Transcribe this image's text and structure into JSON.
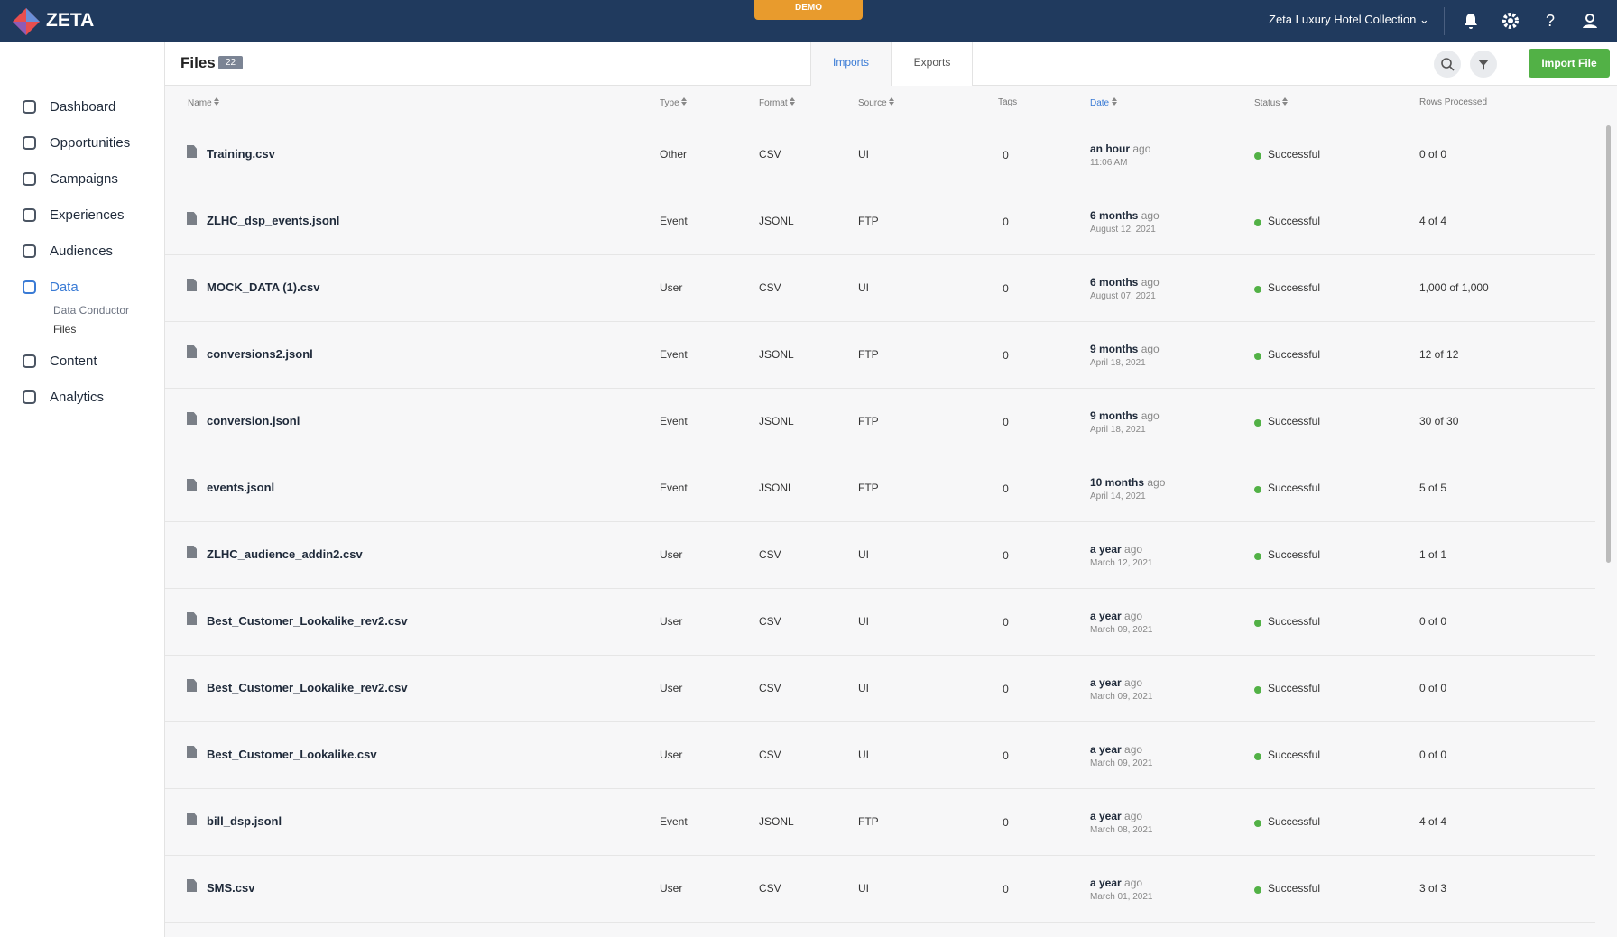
{
  "header": {
    "logo": "ZETA",
    "badge": "DEMO",
    "account": "Zeta Luxury Hotel Collection"
  },
  "sidebar": {
    "items": [
      "Dashboard",
      "Opportunities",
      "Campaigns",
      "Experiences",
      "Audiences",
      "Data",
      "Content",
      "Analytics"
    ],
    "subitems": [
      "Data Conductor",
      "Files"
    ]
  },
  "page": {
    "title": "Files",
    "count": 22,
    "tabs": [
      "Imports",
      "Exports"
    ],
    "button": "Import File"
  },
  "table": {
    "columns": [
      "Name",
      "Type",
      "Format",
      "Source",
      "Tags",
      "Date",
      "Status",
      "Rows Processed"
    ],
    "rows": [
      [
        "Training.csv",
        "Other",
        "CSV",
        "UI",
        0,
        "an hour",
        "ago",
        "11:06 AM",
        "Successful",
        "0 of 0"
      ],
      [
        "ZLHC_dsp_events.jsonl",
        "Event",
        "JSONL",
        "FTP",
        0,
        "6 months",
        "ago",
        "August 12, 2021",
        "Successful",
        "4 of 4"
      ],
      [
        "MOCK_DATA (1).csv",
        "User",
        "CSV",
        "UI",
        0,
        "6 months",
        "ago",
        "August 07, 2021",
        "Successful",
        "1,000 of 1,000"
      ],
      [
        "conversions2.jsonl",
        "Event",
        "JSONL",
        "FTP",
        0,
        "9 months",
        "ago",
        "April 18, 2021",
        "Successful",
        "12 of 12"
      ],
      [
        "conversion.jsonl",
        "Event",
        "JSONL",
        "FTP",
        0,
        "9 months",
        "ago",
        "April 18, 2021",
        "Successful",
        "30 of 30"
      ],
      [
        "events.jsonl",
        "Event",
        "JSONL",
        "FTP",
        0,
        "10 months",
        "ago",
        "April 14, 2021",
        "Successful",
        "5 of 5"
      ],
      [
        "ZLHC_audience_addin2.csv",
        "User",
        "CSV",
        "UI",
        0,
        "a year",
        "ago",
        "March 12, 2021",
        "Successful",
        "1 of 1"
      ],
      [
        "Best_Customer_Lookalike_rev2.csv",
        "User",
        "CSV",
        "UI",
        0,
        "a year",
        "ago",
        "March 09, 2021",
        "Successful",
        "0 of 0"
      ],
      [
        "Best_Customer_Lookalike_rev2.csv",
        "User",
        "CSV",
        "UI",
        0,
        "a year",
        "ago",
        "March 09, 2021",
        "Successful",
        "0 of 0"
      ],
      [
        "Best_Customer_Lookalike.csv",
        "User",
        "CSV",
        "UI",
        0,
        "a year",
        "ago",
        "March 09, 2021",
        "Successful",
        "0 of 0"
      ],
      [
        "bill_dsp.jsonl",
        "Event",
        "JSONL",
        "FTP",
        0,
        "a year",
        "ago",
        "March 08, 2021",
        "Successful",
        "4 of 4"
      ],
      [
        "SMS.csv",
        "User",
        "CSV",
        "UI",
        0,
        "a year",
        "ago",
        "March 01, 2021",
        "Successful",
        "3 of 3"
      ]
    ]
  }
}
